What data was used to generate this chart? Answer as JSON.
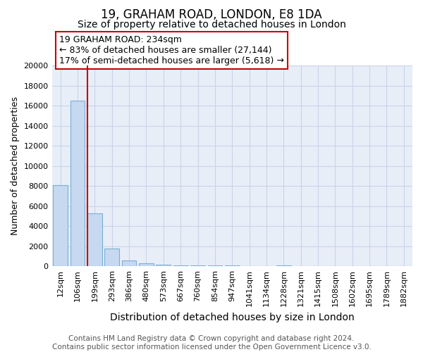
{
  "title": "19, GRAHAM ROAD, LONDON, E8 1DA",
  "subtitle": "Size of property relative to detached houses in London",
  "xlabel": "Distribution of detached houses by size in London",
  "ylabel": "Number of detached properties",
  "bar_labels": [
    "12sqm",
    "106sqm",
    "199sqm",
    "293sqm",
    "386sqm",
    "480sqm",
    "573sqm",
    "667sqm",
    "760sqm",
    "854sqm",
    "947sqm",
    "1041sqm",
    "1134sqm",
    "1228sqm",
    "1321sqm",
    "1415sqm",
    "1508sqm",
    "1602sqm",
    "1695sqm",
    "1789sqm",
    "1882sqm"
  ],
  "bar_heights": [
    8050,
    16500,
    5300,
    1800,
    600,
    300,
    150,
    100,
    100,
    50,
    50,
    10,
    10,
    50,
    5,
    5,
    5,
    5,
    5,
    5,
    5
  ],
  "bar_color": "#c6d9f0",
  "bar_edge_color": "#7bafd4",
  "red_line_index": 2,
  "ylim": [
    0,
    20000
  ],
  "yticks": [
    0,
    2000,
    4000,
    6000,
    8000,
    10000,
    12000,
    14000,
    16000,
    18000,
    20000
  ],
  "annotation_lines": [
    "19 GRAHAM ROAD: 234sqm",
    "← 83% of detached houses are smaller (27,144)",
    "17% of semi-detached houses are larger (5,618) →"
  ],
  "annotation_box_color": "#cc0000",
  "grid_color": "#c8d4e8",
  "background_color": "#e8eef8",
  "footer_line1": "Contains HM Land Registry data © Crown copyright and database right 2024.",
  "footer_line2": "Contains public sector information licensed under the Open Government Licence v3.0.",
  "title_fontsize": 12,
  "subtitle_fontsize": 10,
  "xlabel_fontsize": 10,
  "ylabel_fontsize": 9,
  "tick_fontsize": 8,
  "annotation_fontsize": 9,
  "footer_fontsize": 7.5
}
